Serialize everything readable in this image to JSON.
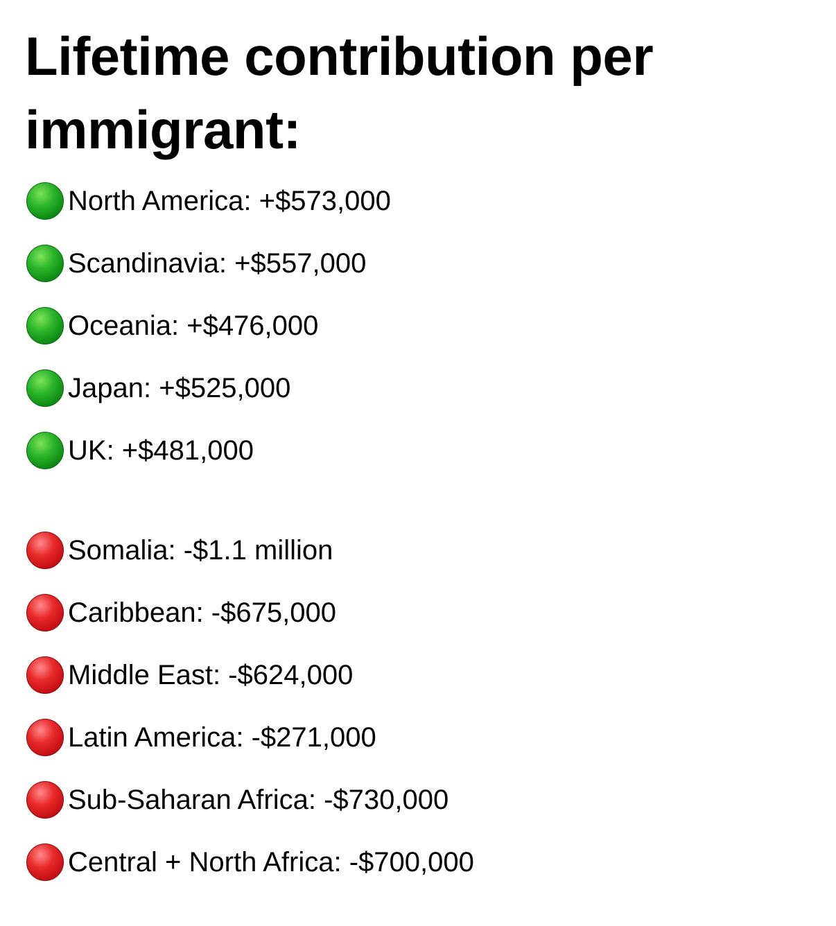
{
  "title": "Lifetime contribution per immigrant:",
  "positive_items": [
    {
      "text": "North America: +$573,000",
      "region": "North America",
      "value_usd": 573000,
      "status_icon": "green-circle-icon",
      "color": "#1faa1f"
    },
    {
      "text": "Scandinavia: +$557,000",
      "region": "Scandinavia",
      "value_usd": 557000,
      "status_icon": "green-circle-icon",
      "color": "#1faa1f"
    },
    {
      "text": "Oceania: +$476,000",
      "region": "Oceania",
      "value_usd": 476000,
      "status_icon": "green-circle-icon",
      "color": "#1faa1f"
    },
    {
      "text": "Japan: +$525,000",
      "region": "Japan",
      "value_usd": 525000,
      "status_icon": "green-circle-icon",
      "color": "#1faa1f"
    },
    {
      "text": "UK: +$481,000",
      "region": "UK",
      "value_usd": 481000,
      "status_icon": "green-circle-icon",
      "color": "#1faa1f"
    }
  ],
  "negative_items": [
    {
      "text": "Somalia: -$1.1 million",
      "region": "Somalia",
      "value_usd": -1100000,
      "status_icon": "red-circle-icon",
      "color": "#d8181d"
    },
    {
      "text": "Caribbean: -$675,000",
      "region": "Caribbean",
      "value_usd": -675000,
      "status_icon": "red-circle-icon",
      "color": "#d8181d"
    },
    {
      "text": "Middle East: -$624,000",
      "region": "Middle East",
      "value_usd": -624000,
      "status_icon": "red-circle-icon",
      "color": "#d8181d"
    },
    {
      "text": "Latin America: -$271,000",
      "region": "Latin America",
      "value_usd": -271000,
      "status_icon": "red-circle-icon",
      "color": "#d8181d"
    },
    {
      "text": "Sub-Saharan Africa: -$730,000",
      "region": "Sub-Saharan Africa",
      "value_usd": -730000,
      "status_icon": "red-circle-icon",
      "color": "#d8181d"
    },
    {
      "text": "Central + North Africa: -$700,000",
      "region": "Central + North Africa",
      "value_usd": -700000,
      "status_icon": "red-circle-icon",
      "color": "#d8181d"
    }
  ]
}
